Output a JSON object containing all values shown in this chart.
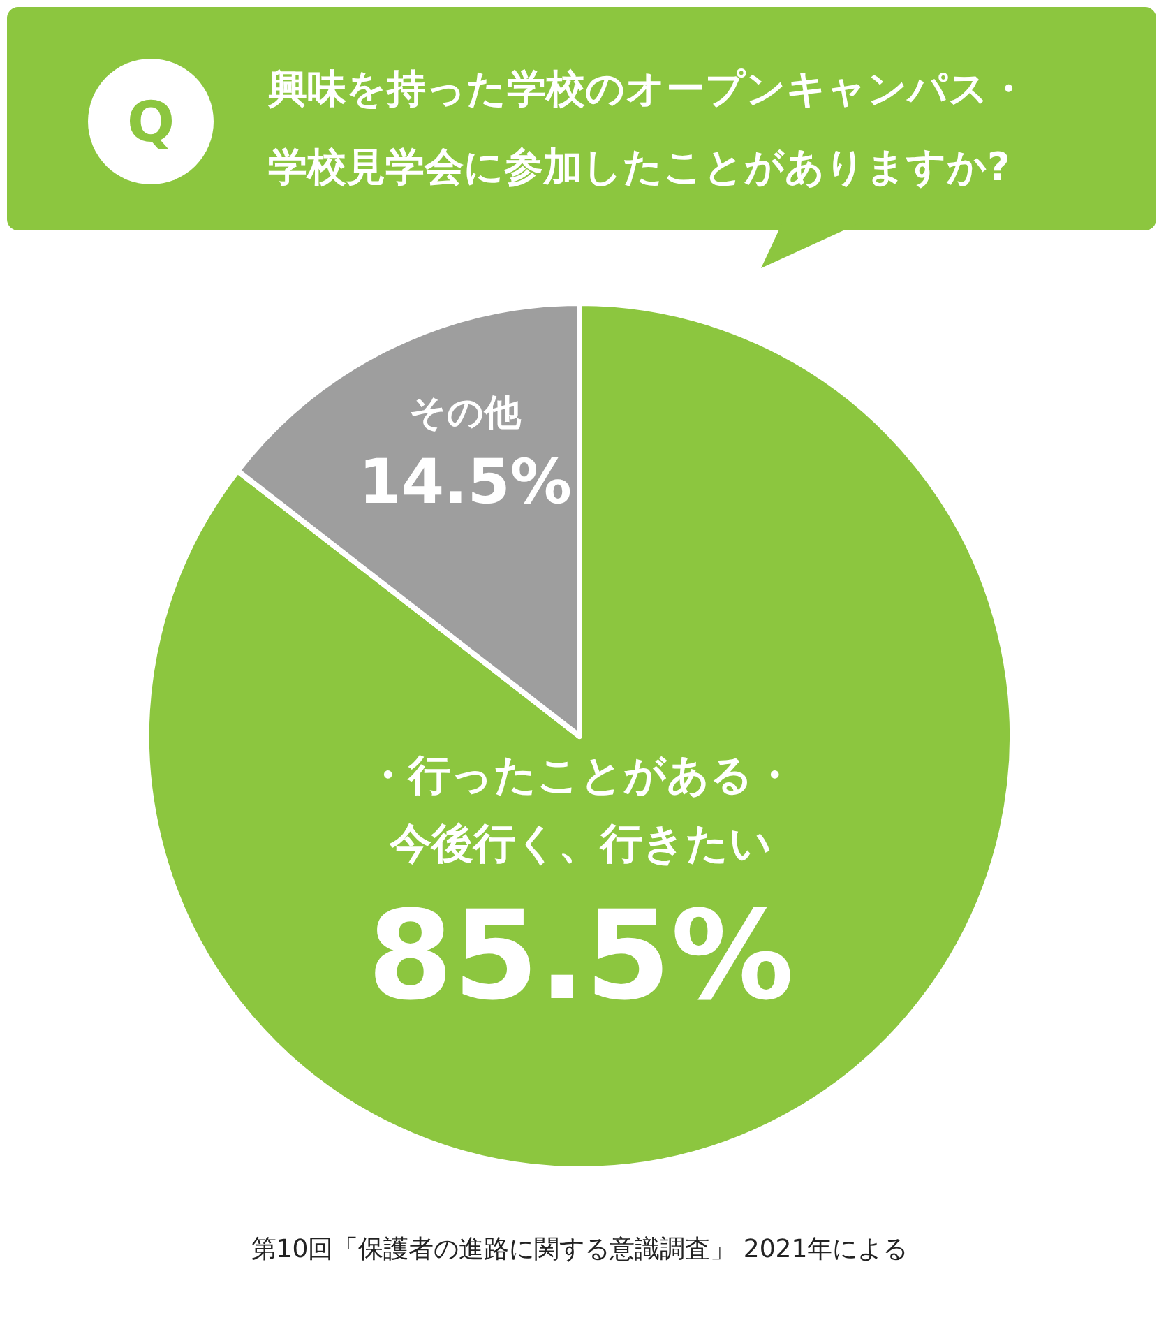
{
  "chart_data": {
    "type": "pie",
    "title": "興味を持った学校のオープンキャンパス・学校見学会に参加したことがありますか?",
    "categories": [
      "・行ったことがある・今後行く、行きたい",
      "その他"
    ],
    "values": [
      85.5,
      14.5
    ],
    "colors": [
      "#8cc63f",
      "#9e9e9e"
    ],
    "value_labels": [
      "85.5%",
      "14.5%"
    ],
    "annotations": [
      "Q",
      "第10回「保護者の進路に関する意識調査」 2021年による"
    ]
  }
}
